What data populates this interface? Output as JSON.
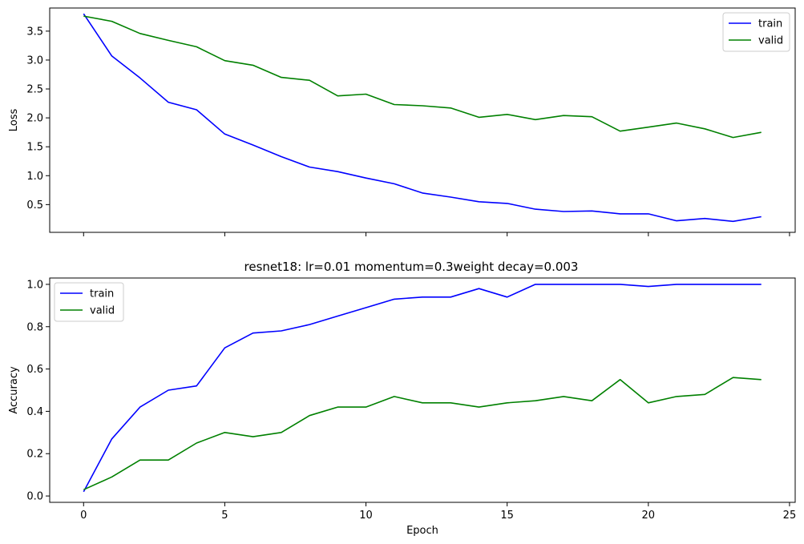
{
  "chart_data": [
    {
      "type": "line",
      "title": "",
      "xlabel": "",
      "ylabel": "Loss",
      "xlim": [
        -1.2,
        25.2
      ],
      "ylim": [
        0.02,
        3.9
      ],
      "xticks": [
        0,
        5,
        10,
        15,
        20,
        25
      ],
      "show_xtick_labels": false,
      "yticks": [
        0.5,
        1.0,
        1.5,
        2.0,
        2.5,
        3.0,
        3.5
      ],
      "ytick_labels": [
        "0.5",
        "1.0",
        "1.5",
        "2.0",
        "2.5",
        "3.0",
        "3.5"
      ],
      "grid": false,
      "legend": "top-right",
      "x": [
        0,
        1,
        2,
        3,
        4,
        5,
        6,
        7,
        8,
        9,
        10,
        11,
        12,
        13,
        14,
        15,
        16,
        17,
        18,
        19,
        20,
        21,
        22,
        23,
        24
      ],
      "series": [
        {
          "name": "train",
          "color": "#0000ff",
          "values": [
            3.8,
            3.07,
            2.69,
            2.27,
            2.14,
            1.72,
            1.53,
            1.33,
            1.15,
            1.07,
            0.96,
            0.86,
            0.7,
            0.63,
            0.55,
            0.52,
            0.42,
            0.38,
            0.39,
            0.34,
            0.34,
            0.22,
            0.26,
            0.21,
            0.29
          ]
        },
        {
          "name": "valid",
          "color": "#008000",
          "values": [
            3.76,
            3.67,
            3.46,
            3.34,
            3.23,
            2.99,
            2.91,
            2.7,
            2.65,
            2.38,
            2.41,
            2.23,
            2.21,
            2.17,
            2.01,
            2.06,
            1.97,
            2.04,
            2.02,
            1.77,
            1.84,
            1.91,
            1.81,
            1.66,
            1.75
          ]
        }
      ]
    },
    {
      "type": "line",
      "title": "resnet18: lr=0.01 momentum=0.3weight decay=0.003",
      "xlabel": "Epoch",
      "ylabel": "Accuracy",
      "xlim": [
        -1.2,
        25.2
      ],
      "ylim": [
        -0.03,
        1.03
      ],
      "xticks": [
        0,
        5,
        10,
        15,
        20,
        25
      ],
      "xtick_labels": [
        "0",
        "5",
        "10",
        "15",
        "20",
        "25"
      ],
      "show_xtick_labels": true,
      "yticks": [
        0.0,
        0.2,
        0.4,
        0.6,
        0.8,
        1.0
      ],
      "ytick_labels": [
        "0.0",
        "0.2",
        "0.4",
        "0.6",
        "0.8",
        "1.0"
      ],
      "grid": false,
      "legend": "top-left",
      "x": [
        0,
        1,
        2,
        3,
        4,
        5,
        6,
        7,
        8,
        9,
        10,
        11,
        12,
        13,
        14,
        15,
        16,
        17,
        18,
        19,
        20,
        21,
        22,
        23,
        24
      ],
      "series": [
        {
          "name": "train",
          "color": "#0000ff",
          "values": [
            0.02,
            0.27,
            0.42,
            0.5,
            0.52,
            0.7,
            0.77,
            0.78,
            0.81,
            0.85,
            0.89,
            0.93,
            0.94,
            0.94,
            0.98,
            0.94,
            1.0,
            1.0,
            1.0,
            1.0,
            0.99,
            1.0,
            1.0,
            1.0,
            1.0
          ]
        },
        {
          "name": "valid",
          "color": "#008000",
          "values": [
            0.03,
            0.09,
            0.17,
            0.17,
            0.25,
            0.3,
            0.28,
            0.3,
            0.38,
            0.42,
            0.42,
            0.47,
            0.44,
            0.44,
            0.42,
            0.44,
            0.45,
            0.47,
            0.45,
            0.55,
            0.44,
            0.47,
            0.48,
            0.56,
            0.55
          ]
        }
      ]
    }
  ]
}
